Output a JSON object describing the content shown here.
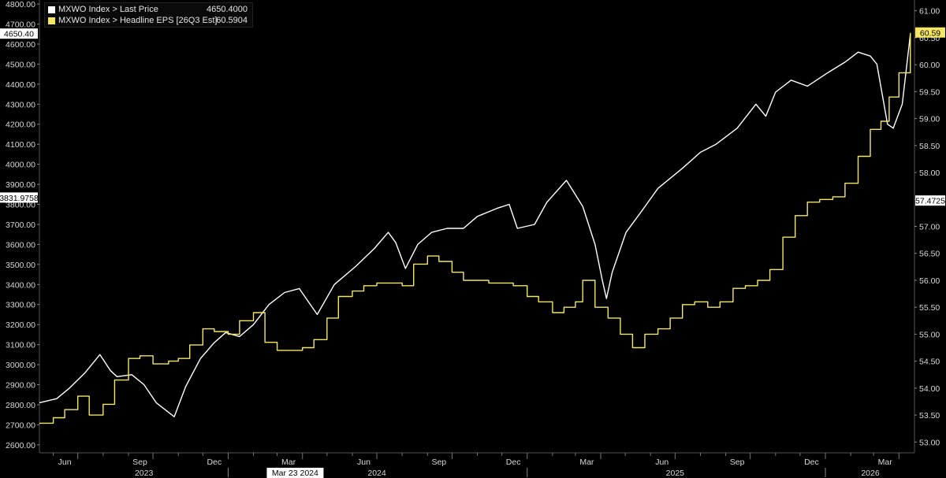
{
  "chart_data": {
    "type": "line",
    "x_axis": {
      "month_ticks": [
        "Jun",
        "Sep",
        "Dec",
        "Mar",
        "Jun",
        "Sep",
        "Dec",
        "Mar",
        "Jun",
        "Sep",
        "Dec",
        "Mar"
      ],
      "year_labels": [
        "2023",
        "2024",
        "2025",
        "2026"
      ],
      "cursor_date_label": "Mar 23 2024",
      "range": [
        "2023-05-15",
        "2026-04-20"
      ]
    },
    "left_axis": {
      "ticks": [
        "2600.00",
        "2700.00",
        "2800.00",
        "2900.00",
        "3000.00",
        "3100.00",
        "3200.00",
        "3300.00",
        "3400.00",
        "3500.00",
        "3600.00",
        "3700.00",
        "3800.00",
        "3900.00",
        "4000.00",
        "4100.00",
        "4200.00",
        "4300.00",
        "4400.00",
        "4500.00",
        "4600.00",
        "4700.00",
        "4800.00"
      ],
      "range": [
        2560,
        4820
      ]
    },
    "right_axis": {
      "ticks": [
        "53.00",
        "53.50",
        "54.00",
        "54.50",
        "55.00",
        "55.50",
        "56.00",
        "56.50",
        "57.00",
        "57.50",
        "58.00",
        "58.50",
        "59.00",
        "59.50",
        "60.00",
        "60.50",
        "61.00"
      ],
      "range": [
        52.8,
        61.2
      ]
    },
    "value_tags": {
      "left_last": "4650.40",
      "left_cursor": "3831.9758",
      "right_last": "60.59",
      "right_cursor": "57.4725"
    },
    "legend": [
      {
        "label": "MXWO Index > Last Price",
        "value": "4650.4000",
        "color": "#ffffff"
      },
      {
        "label": "MXWO Index > Headline EPS [26Q3 Est]",
        "value": "60.5904",
        "color": "#f5e663"
      }
    ],
    "series": [
      {
        "name": "MXWO Index > Last Price",
        "axis": "left",
        "color": "#ffffff",
        "x": [
          "2023-05-15",
          "2023-06-05",
          "2023-06-20",
          "2023-07-10",
          "2023-07-28",
          "2023-08-10",
          "2023-08-18",
          "2023-09-05",
          "2023-09-20",
          "2023-10-05",
          "2023-10-27",
          "2023-11-10",
          "2023-11-28",
          "2023-12-15",
          "2023-12-29",
          "2024-01-15",
          "2024-02-01",
          "2024-02-20",
          "2024-03-10",
          "2024-03-28",
          "2024-04-19",
          "2024-05-10",
          "2024-06-05",
          "2024-06-28",
          "2024-07-15",
          "2024-07-24",
          "2024-08-05",
          "2024-08-20",
          "2024-09-06",
          "2024-09-25",
          "2024-10-15",
          "2024-11-01",
          "2024-11-25",
          "2024-12-10",
          "2024-12-20",
          "2025-01-10",
          "2025-01-25",
          "2025-02-18",
          "2025-03-10",
          "2025-03-25",
          "2025-04-03",
          "2025-04-08",
          "2025-04-15",
          "2025-05-02",
          "2025-05-20",
          "2025-06-10",
          "2025-07-10",
          "2025-08-01",
          "2025-08-20",
          "2025-09-15",
          "2025-10-08",
          "2025-10-20",
          "2025-11-01",
          "2025-11-20",
          "2025-12-10",
          "2026-01-05",
          "2026-01-25",
          "2026-02-10",
          "2026-02-25",
          "2026-03-05",
          "2026-03-18",
          "2026-03-25",
          "2026-04-05",
          "2026-04-15"
        ],
        "values": [
          2810,
          2830,
          2880,
          2960,
          3050,
          2970,
          2940,
          2950,
          2900,
          2810,
          2740,
          2890,
          3030,
          3110,
          3160,
          3140,
          3200,
          3300,
          3360,
          3380,
          3250,
          3400,
          3490,
          3580,
          3660,
          3610,
          3480,
          3600,
          3660,
          3680,
          3680,
          3740,
          3780,
          3800,
          3680,
          3700,
          3810,
          3920,
          3790,
          3600,
          3420,
          3330,
          3460,
          3660,
          3760,
          3880,
          3980,
          4060,
          4100,
          4180,
          4300,
          4240,
          4360,
          4420,
          4390,
          4460,
          4510,
          4560,
          4540,
          4500,
          4200,
          4180,
          4300,
          4650
        ]
      },
      {
        "name": "MXWO Index > Headline EPS [26Q3 Est]",
        "axis": "right",
        "color": "#f5e663",
        "x": [
          "2023-05-15",
          "2023-06-01",
          "2023-06-15",
          "2023-07-01",
          "2023-07-15",
          "2023-08-01",
          "2023-08-15",
          "2023-09-01",
          "2023-09-15",
          "2023-10-01",
          "2023-10-20",
          "2023-11-01",
          "2023-11-15",
          "2023-12-01",
          "2023-12-15",
          "2024-01-01",
          "2024-01-15",
          "2024-02-01",
          "2024-02-15",
          "2024-03-01",
          "2024-03-15",
          "2024-04-01",
          "2024-04-15",
          "2024-05-01",
          "2024-05-15",
          "2024-06-01",
          "2024-06-15",
          "2024-07-01",
          "2024-07-15",
          "2024-08-01",
          "2024-08-15",
          "2024-09-01",
          "2024-09-15",
          "2024-10-01",
          "2024-10-15",
          "2024-11-01",
          "2024-11-15",
          "2024-12-01",
          "2024-12-15",
          "2025-01-01",
          "2025-01-15",
          "2025-02-01",
          "2025-02-15",
          "2025-03-01",
          "2025-03-10",
          "2025-03-25",
          "2025-04-10",
          "2025-04-25",
          "2025-05-10",
          "2025-05-25",
          "2025-06-10",
          "2025-06-25",
          "2025-07-10",
          "2025-07-25",
          "2025-08-10",
          "2025-08-25",
          "2025-09-10",
          "2025-09-25",
          "2025-10-10",
          "2025-10-25",
          "2025-11-10",
          "2025-11-25",
          "2025-12-10",
          "2025-12-25",
          "2026-01-10",
          "2026-01-25",
          "2026-02-10",
          "2026-02-25",
          "2026-03-10",
          "2026-03-20",
          "2026-04-01",
          "2026-04-15"
        ],
        "values": [
          53.35,
          53.45,
          53.6,
          53.85,
          53.5,
          53.7,
          54.15,
          54.55,
          54.6,
          54.45,
          54.5,
          54.55,
          54.8,
          55.1,
          55.05,
          55.0,
          55.25,
          55.4,
          54.85,
          54.7,
          54.7,
          54.75,
          54.9,
          55.3,
          55.7,
          55.8,
          55.9,
          55.95,
          55.95,
          55.9,
          56.3,
          56.45,
          56.35,
          56.15,
          56.0,
          56.0,
          55.95,
          55.95,
          55.9,
          55.7,
          55.6,
          55.4,
          55.5,
          55.6,
          56.0,
          55.5,
          55.3,
          55.0,
          54.75,
          55.0,
          55.1,
          55.3,
          55.55,
          55.6,
          55.5,
          55.6,
          55.85,
          55.9,
          56.0,
          56.2,
          56.8,
          57.2,
          57.45,
          57.5,
          57.55,
          57.8,
          58.3,
          58.8,
          58.95,
          59.4,
          59.85,
          60.59
        ]
      }
    ]
  }
}
